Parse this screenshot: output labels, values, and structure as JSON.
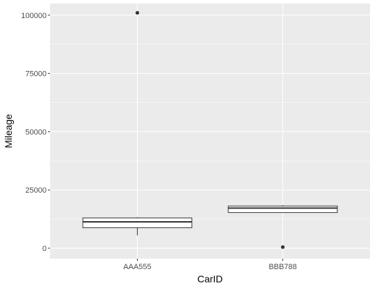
{
  "colors": {
    "panel": "#ebebeb",
    "grid_major": "#ffffff",
    "box_fill": "#ffffff",
    "box_stroke": "#333333",
    "outlier": "#333333",
    "tick": "#333333"
  },
  "chart_data": {
    "type": "boxplot",
    "title": "",
    "xlabel": "CarID",
    "ylabel": "Mileage",
    "ylim": [
      -4500,
      105000
    ],
    "yticks": [
      0,
      25000,
      50000,
      75000,
      100000
    ],
    "ytick_labels": [
      "0",
      "25000",
      "50000",
      "75000",
      "100000"
    ],
    "grid": true,
    "legend": "none",
    "categories": [
      "AAA555",
      "BBB788"
    ],
    "boxes": [
      {
        "category": "AAA555",
        "whisker_low": 5500,
        "q1": 8800,
        "median": 11300,
        "q3": 13000,
        "whisker_high": 13300,
        "outliers": [
          101000
        ]
      },
      {
        "category": "BBB788",
        "whisker_low": 15300,
        "q1": 15300,
        "median": 17200,
        "q3": 18100,
        "whisker_high": 18500,
        "outliers": [
          500
        ]
      }
    ]
  }
}
